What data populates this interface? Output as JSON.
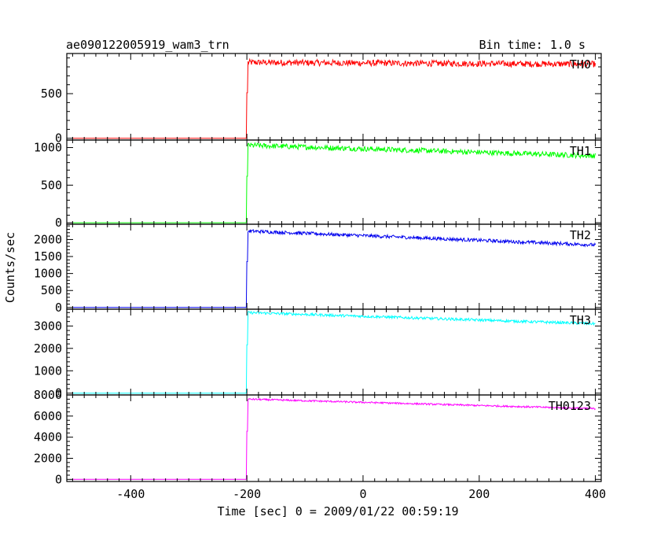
{
  "chart_data": {
    "type": "line",
    "title": "ae090122005919_wam3_trn",
    "subtitle": "Bin time: 1.0 s",
    "xlabel": "Time [sec] 0 = 2009/01/22 00:59:19",
    "ylabel": "Counts/sec",
    "xlim": [
      -510,
      410
    ],
    "x_ticks": [
      -400,
      -200,
      0,
      200,
      400
    ],
    "grid": false,
    "series": [
      {
        "name": "TH0",
        "color": "#ff0000",
        "ylim": [
          -20,
          950
        ],
        "y_ticks": [
          0,
          500
        ],
        "baseline": 0,
        "onset": -200,
        "post_levels": [
          [
            -198,
            850
          ],
          [
            400,
            830
          ]
        ],
        "noise": 35
      },
      {
        "name": "TH1",
        "color": "#00ff00",
        "ylim": [
          -20,
          1100
        ],
        "y_ticks": [
          0,
          500,
          1000
        ],
        "baseline": 0,
        "onset": -200,
        "post_levels": [
          [
            -198,
            1030
          ],
          [
            400,
            890
          ]
        ],
        "noise": 35
      },
      {
        "name": "TH2",
        "color": "#0000ee",
        "ylim": [
          -50,
          2450
        ],
        "y_ticks": [
          0,
          500,
          1000,
          1500,
          2000
        ],
        "baseline": 0,
        "onset": -200,
        "post_levels": [
          [
            -198,
            2250
          ],
          [
            400,
            1840
          ]
        ],
        "noise": 50
      },
      {
        "name": "TH3",
        "color": "#00ffff",
        "ylim": [
          -80,
          3750
        ],
        "y_ticks": [
          0,
          1000,
          2000,
          3000
        ],
        "baseline": 0,
        "onset": -200,
        "post_levels": [
          [
            -198,
            3600
          ],
          [
            400,
            3100
          ]
        ],
        "noise": 60
      },
      {
        "name": "TH0123",
        "color": "#ff00ff",
        "ylim": [
          -200,
          8000
        ],
        "y_ticks": [
          0,
          2000,
          4000,
          6000,
          8000
        ],
        "baseline": 0,
        "onset": -200,
        "post_levels": [
          [
            -198,
            7600
          ],
          [
            400,
            6700
          ]
        ],
        "noise": 80
      }
    ]
  }
}
